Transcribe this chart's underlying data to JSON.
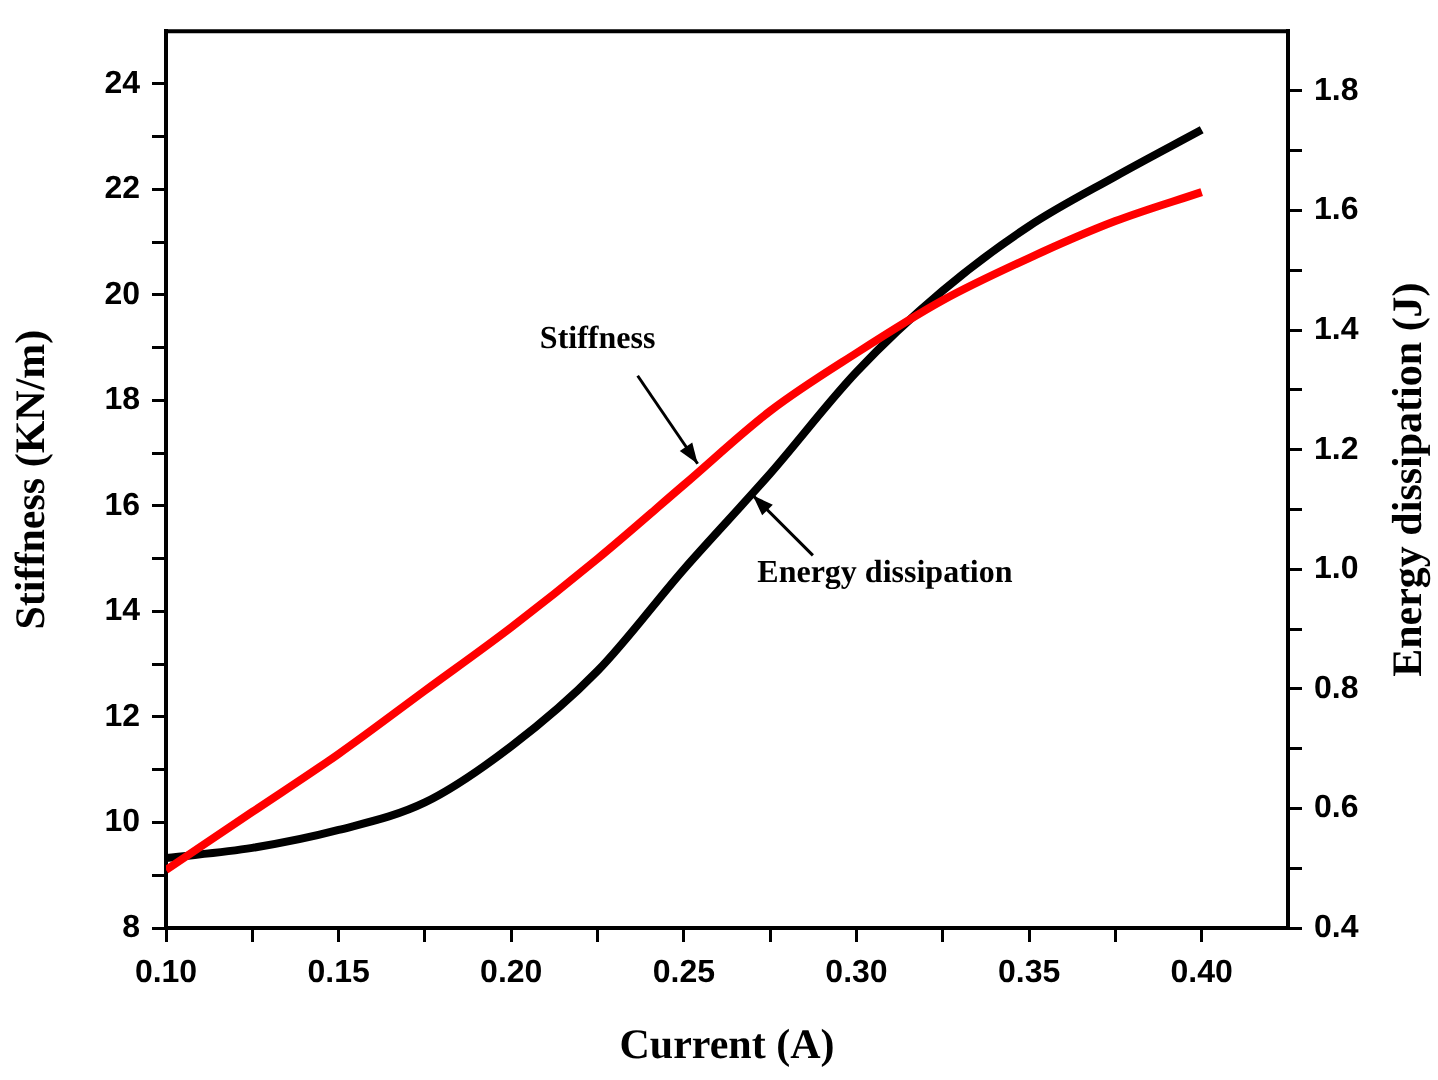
{
  "chart_data": {
    "type": "line",
    "xlabel": "Current (A)",
    "ylabel": "Stiffness (KN/m)",
    "y2label": "Energy dissipation (J)",
    "x": [
      0.1,
      0.125,
      0.15,
      0.175,
      0.2,
      0.225,
      0.25,
      0.275,
      0.3,
      0.325,
      0.35,
      0.375,
      0.4
    ],
    "series": [
      {
        "color": "#ff0000",
        "values": [
          9.1,
          10.2,
          11.3,
          12.5,
          13.7,
          15.0,
          16.4,
          17.8,
          18.9,
          19.9,
          20.7,
          21.4,
          21.95
        ]
      },
      {
        "color": "#000000",
        "axis": "y2",
        "values": [
          0.517,
          0.534,
          0.564,
          0.61,
          0.704,
          0.83,
          1.0,
          1.16,
          1.33,
          1.466,
          1.574,
          1.657,
          1.735
        ]
      }
    ],
    "xlim": [
      0.1,
      0.425
    ],
    "xticks": [
      {
        "value": 0.1,
        "label": "0.10"
      },
      {
        "value": 0.125,
        "label": null
      },
      {
        "value": 0.15,
        "label": "0.15"
      },
      {
        "value": 0.175,
        "label": null
      },
      {
        "value": 0.2,
        "label": "0.20"
      },
      {
        "value": 0.225,
        "label": null
      },
      {
        "value": 0.25,
        "label": "0.25"
      },
      {
        "value": 0.275,
        "label": null
      },
      {
        "value": 0.3,
        "label": "0.30"
      },
      {
        "value": 0.325,
        "label": null
      },
      {
        "value": 0.35,
        "label": "0.35"
      },
      {
        "value": 0.375,
        "label": null
      },
      {
        "value": 0.4,
        "label": "0.40"
      }
    ],
    "ylim": [
      8,
      25
    ],
    "yticks": [
      8,
      {
        "value": 9,
        "label": null
      },
      10,
      {
        "value": 11,
        "label": null
      },
      12,
      {
        "value": 13,
        "label": null
      },
      14,
      {
        "value": 15,
        "label": null
      },
      16,
      {
        "value": 17,
        "label": null
      },
      18,
      {
        "value": 19,
        "label": null
      },
      20,
      {
        "value": 21,
        "label": null
      },
      22,
      {
        "value": 23,
        "label": null
      },
      24
    ],
    "y2lim": [
      0.4,
      1.9
    ],
    "y2ticks": [
      0.4,
      {
        "value": 0.5,
        "label": null
      },
      0.6,
      {
        "value": 0.7,
        "label": null
      },
      0.8,
      {
        "value": 0.9,
        "label": null
      },
      {
        "value": 1.0,
        "label": "1.0"
      },
      {
        "value": 1.1,
        "label": null
      },
      1.2,
      {
        "value": 1.3,
        "label": null
      },
      1.4,
      {
        "value": 1.5,
        "label": null
      },
      1.6,
      {
        "value": 1.7,
        "label": null
      },
      1.8
    ],
    "annotations": [
      {
        "text": "Stiffness",
        "x": 0.254,
        "y": 16.8
      },
      {
        "text": "Energy dissipation",
        "x": 0.27,
        "y": 16.2
      }
    ],
    "grid": false,
    "legend": false,
    "marker": "none",
    "line_style": "solid"
  }
}
